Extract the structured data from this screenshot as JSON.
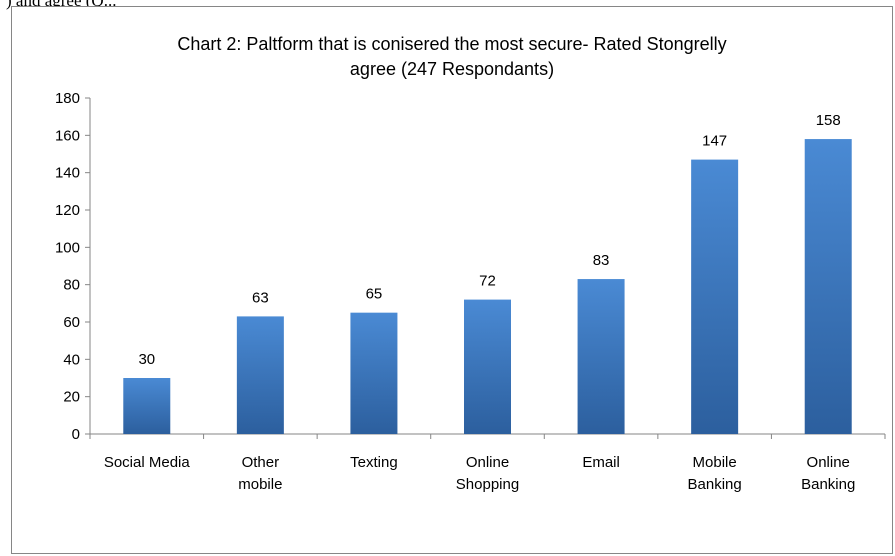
{
  "page": {
    "top_text": ") and agree (Q..."
  },
  "chart_data": {
    "type": "bar",
    "title_lines": [
      "Chart 2: Paltform that is conisered the most secure- Rated Stongrelly",
      "agree  (247 Respondants)"
    ],
    "categories": [
      [
        "Social Media"
      ],
      [
        "Other",
        "mobile"
      ],
      [
        "Texting"
      ],
      [
        "Online",
        "Shopping"
      ],
      [
        "Email"
      ],
      [
        "Mobile",
        "Banking"
      ],
      [
        "Online",
        "Banking"
      ]
    ],
    "values": [
      30,
      63,
      65,
      72,
      83,
      147,
      158
    ],
    "data_labels": [
      "30",
      "63",
      "65",
      "72",
      "83",
      "147",
      "158"
    ],
    "ylim": [
      0,
      180
    ],
    "yticks": [
      0,
      20,
      40,
      60,
      80,
      100,
      120,
      140,
      160,
      180
    ],
    "xlabel": "",
    "ylabel": "",
    "grid": false,
    "legend": "none",
    "bar_color_light": "#4a8ad4",
    "bar_color_dark": "#2c5f9e"
  }
}
